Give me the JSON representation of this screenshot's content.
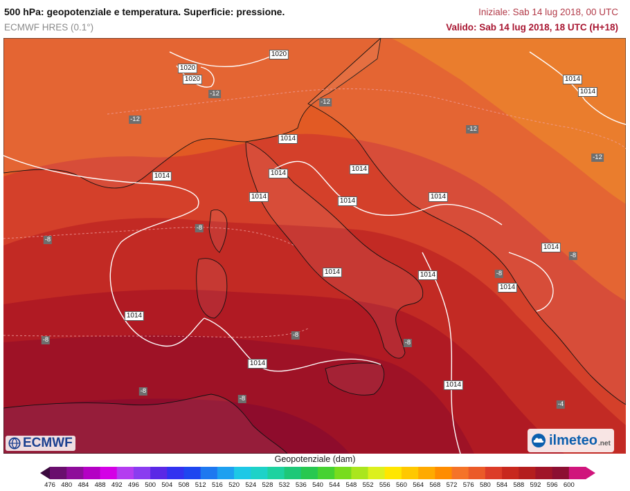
{
  "header": {
    "title": "500 hPa: geopotenziale e temperatura. Superficie: pressione.",
    "model": "ECMWF HRES (0.1°)",
    "init": "Iniziale: Sab 14 lug 2018, 00 UTC",
    "valid": "Valido: Sab 14 lug 2018, 18 UTC (H+18)"
  },
  "pressure_labels": [
    "1020",
    "1020",
    "1020",
    "1014",
    "1014",
    "1014",
    "1014",
    "1014",
    "1014",
    "1014",
    "1014",
    "1014",
    "1014",
    "1014",
    "1014",
    "1014",
    "1014",
    "1014",
    "1014"
  ],
  "temperature_labels": [
    "-12",
    "-12",
    "-12",
    "-12",
    "-12",
    "-8",
    "-8",
    "-8",
    "-8",
    "-8",
    "-8",
    "-8",
    "-8",
    "-8",
    "-4"
  ],
  "logos": {
    "ecmwf": "ECMWF",
    "ilmeteo": "ilmeteo",
    "ilmeteo_suffix": ".net"
  },
  "colorbar": {
    "title": "Geopotenziale (dam)",
    "ticks": [
      "476",
      "480",
      "484",
      "488",
      "492",
      "496",
      "500",
      "504",
      "508",
      "512",
      "516",
      "520",
      "524",
      "528",
      "532",
      "536",
      "540",
      "544",
      "548",
      "552",
      "556",
      "560",
      "564",
      "568",
      "572",
      "576",
      "580",
      "584",
      "588",
      "592",
      "596",
      "600"
    ],
    "colors": [
      "#3b0a3e",
      "#6a0e6e",
      "#8e0c9a",
      "#b400c4",
      "#d400e6",
      "#b43cf0",
      "#8a3cf0",
      "#5a28e6",
      "#3232f0",
      "#1e46f0",
      "#1e78f0",
      "#1ea0f0",
      "#1ec8e6",
      "#1ed2c8",
      "#1ed2a0",
      "#1ec878",
      "#28c850",
      "#46d232",
      "#78dc1e",
      "#aae61e",
      "#dcf01e",
      "#ffe600",
      "#ffc800",
      "#ffaa00",
      "#ff8c00",
      "#f57328",
      "#eb5a28",
      "#dc3c28",
      "#c8281e",
      "#b41e1e",
      "#a01428",
      "#8c0f32",
      "#d0157c"
    ]
  },
  "map_colors": {
    "band_568": "#e9741e",
    "band_572": "#e25a24",
    "band_576": "#d4402a",
    "band_580": "#c22a24",
    "band_584": "#b01a23",
    "band_588": "#9e1226",
    "band_592": "#8e0c2c"
  }
}
